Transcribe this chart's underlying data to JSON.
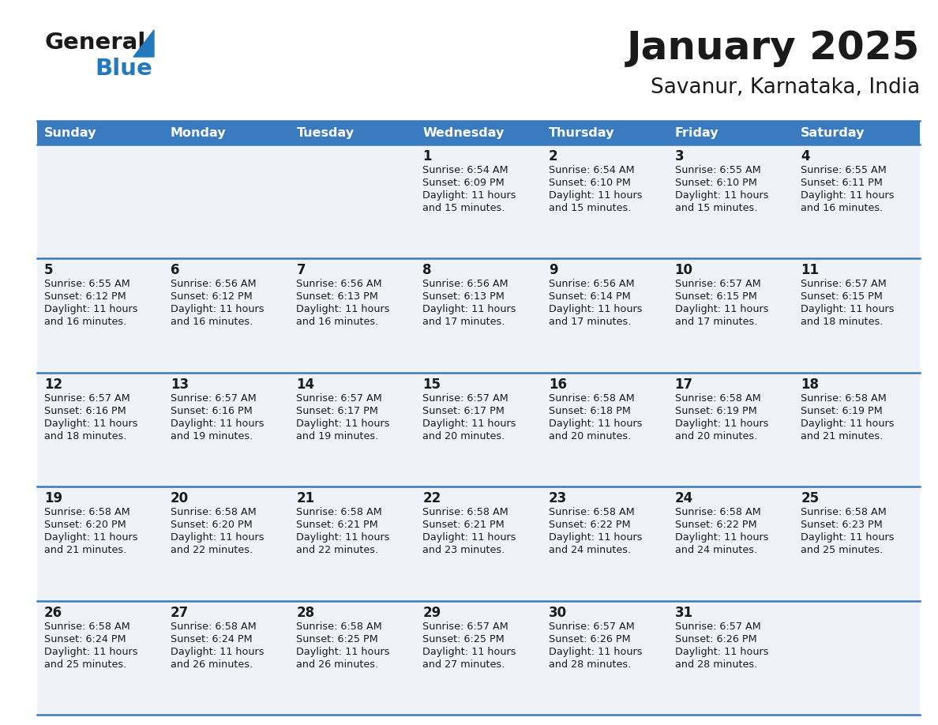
{
  "title": "January 2025",
  "subtitle": "Savanur, Karnataka, India",
  "header_bg_color": "#3a7abf",
  "header_text_color": "#ffffff",
  "cell_bg_color": "#eff3f8",
  "row_line_color": "#3a7abf",
  "text_color": "#1a1a1a",
  "days_of_week": [
    "Sunday",
    "Monday",
    "Tuesday",
    "Wednesday",
    "Thursday",
    "Friday",
    "Saturday"
  ],
  "logo_color1": "#1a1a1a",
  "logo_color2": "#2479bc",
  "logo_triangle_color": "#2479bc",
  "calendar": [
    [
      {
        "day": null,
        "sunrise": null,
        "sunset": null,
        "daylight_line1": null,
        "daylight_line2": null
      },
      {
        "day": null,
        "sunrise": null,
        "sunset": null,
        "daylight_line1": null,
        "daylight_line2": null
      },
      {
        "day": null,
        "sunrise": null,
        "sunset": null,
        "daylight_line1": null,
        "daylight_line2": null
      },
      {
        "day": "1",
        "sunrise": "6:54 AM",
        "sunset": "6:09 PM",
        "daylight_line1": "Daylight: 11 hours",
        "daylight_line2": "and 15 minutes."
      },
      {
        "day": "2",
        "sunrise": "6:54 AM",
        "sunset": "6:10 PM",
        "daylight_line1": "Daylight: 11 hours",
        "daylight_line2": "and 15 minutes."
      },
      {
        "day": "3",
        "sunrise": "6:55 AM",
        "sunset": "6:10 PM",
        "daylight_line1": "Daylight: 11 hours",
        "daylight_line2": "and 15 minutes."
      },
      {
        "day": "4",
        "sunrise": "6:55 AM",
        "sunset": "6:11 PM",
        "daylight_line1": "Daylight: 11 hours",
        "daylight_line2": "and 16 minutes."
      }
    ],
    [
      {
        "day": "5",
        "sunrise": "6:55 AM",
        "sunset": "6:12 PM",
        "daylight_line1": "Daylight: 11 hours",
        "daylight_line2": "and 16 minutes."
      },
      {
        "day": "6",
        "sunrise": "6:56 AM",
        "sunset": "6:12 PM",
        "daylight_line1": "Daylight: 11 hours",
        "daylight_line2": "and 16 minutes."
      },
      {
        "day": "7",
        "sunrise": "6:56 AM",
        "sunset": "6:13 PM",
        "daylight_line1": "Daylight: 11 hours",
        "daylight_line2": "and 16 minutes."
      },
      {
        "day": "8",
        "sunrise": "6:56 AM",
        "sunset": "6:13 PM",
        "daylight_line1": "Daylight: 11 hours",
        "daylight_line2": "and 17 minutes."
      },
      {
        "day": "9",
        "sunrise": "6:56 AM",
        "sunset": "6:14 PM",
        "daylight_line1": "Daylight: 11 hours",
        "daylight_line2": "and 17 minutes."
      },
      {
        "day": "10",
        "sunrise": "6:57 AM",
        "sunset": "6:15 PM",
        "daylight_line1": "Daylight: 11 hours",
        "daylight_line2": "and 17 minutes."
      },
      {
        "day": "11",
        "sunrise": "6:57 AM",
        "sunset": "6:15 PM",
        "daylight_line1": "Daylight: 11 hours",
        "daylight_line2": "and 18 minutes."
      }
    ],
    [
      {
        "day": "12",
        "sunrise": "6:57 AM",
        "sunset": "6:16 PM",
        "daylight_line1": "Daylight: 11 hours",
        "daylight_line2": "and 18 minutes."
      },
      {
        "day": "13",
        "sunrise": "6:57 AM",
        "sunset": "6:16 PM",
        "daylight_line1": "Daylight: 11 hours",
        "daylight_line2": "and 19 minutes."
      },
      {
        "day": "14",
        "sunrise": "6:57 AM",
        "sunset": "6:17 PM",
        "daylight_line1": "Daylight: 11 hours",
        "daylight_line2": "and 19 minutes."
      },
      {
        "day": "15",
        "sunrise": "6:57 AM",
        "sunset": "6:17 PM",
        "daylight_line1": "Daylight: 11 hours",
        "daylight_line2": "and 20 minutes."
      },
      {
        "day": "16",
        "sunrise": "6:58 AM",
        "sunset": "6:18 PM",
        "daylight_line1": "Daylight: 11 hours",
        "daylight_line2": "and 20 minutes."
      },
      {
        "day": "17",
        "sunrise": "6:58 AM",
        "sunset": "6:19 PM",
        "daylight_line1": "Daylight: 11 hours",
        "daylight_line2": "and 20 minutes."
      },
      {
        "day": "18",
        "sunrise": "6:58 AM",
        "sunset": "6:19 PM",
        "daylight_line1": "Daylight: 11 hours",
        "daylight_line2": "and 21 minutes."
      }
    ],
    [
      {
        "day": "19",
        "sunrise": "6:58 AM",
        "sunset": "6:20 PM",
        "daylight_line1": "Daylight: 11 hours",
        "daylight_line2": "and 21 minutes."
      },
      {
        "day": "20",
        "sunrise": "6:58 AM",
        "sunset": "6:20 PM",
        "daylight_line1": "Daylight: 11 hours",
        "daylight_line2": "and 22 minutes."
      },
      {
        "day": "21",
        "sunrise": "6:58 AM",
        "sunset": "6:21 PM",
        "daylight_line1": "Daylight: 11 hours",
        "daylight_line2": "and 22 minutes."
      },
      {
        "day": "22",
        "sunrise": "6:58 AM",
        "sunset": "6:21 PM",
        "daylight_line1": "Daylight: 11 hours",
        "daylight_line2": "and 23 minutes."
      },
      {
        "day": "23",
        "sunrise": "6:58 AM",
        "sunset": "6:22 PM",
        "daylight_line1": "Daylight: 11 hours",
        "daylight_line2": "and 24 minutes."
      },
      {
        "day": "24",
        "sunrise": "6:58 AM",
        "sunset": "6:22 PM",
        "daylight_line1": "Daylight: 11 hours",
        "daylight_line2": "and 24 minutes."
      },
      {
        "day": "25",
        "sunrise": "6:58 AM",
        "sunset": "6:23 PM",
        "daylight_line1": "Daylight: 11 hours",
        "daylight_line2": "and 25 minutes."
      }
    ],
    [
      {
        "day": "26",
        "sunrise": "6:58 AM",
        "sunset": "6:24 PM",
        "daylight_line1": "Daylight: 11 hours",
        "daylight_line2": "and 25 minutes."
      },
      {
        "day": "27",
        "sunrise": "6:58 AM",
        "sunset": "6:24 PM",
        "daylight_line1": "Daylight: 11 hours",
        "daylight_line2": "and 26 minutes."
      },
      {
        "day": "28",
        "sunrise": "6:58 AM",
        "sunset": "6:25 PM",
        "daylight_line1": "Daylight: 11 hours",
        "daylight_line2": "and 26 minutes."
      },
      {
        "day": "29",
        "sunrise": "6:57 AM",
        "sunset": "6:25 PM",
        "daylight_line1": "Daylight: 11 hours",
        "daylight_line2": "and 27 minutes."
      },
      {
        "day": "30",
        "sunrise": "6:57 AM",
        "sunset": "6:26 PM",
        "daylight_line1": "Daylight: 11 hours",
        "daylight_line2": "and 28 minutes."
      },
      {
        "day": "31",
        "sunrise": "6:57 AM",
        "sunset": "6:26 PM",
        "daylight_line1": "Daylight: 11 hours",
        "daylight_line2": "and 28 minutes."
      },
      {
        "day": null,
        "sunrise": null,
        "sunset": null,
        "daylight_line1": null,
        "daylight_line2": null
      }
    ]
  ]
}
